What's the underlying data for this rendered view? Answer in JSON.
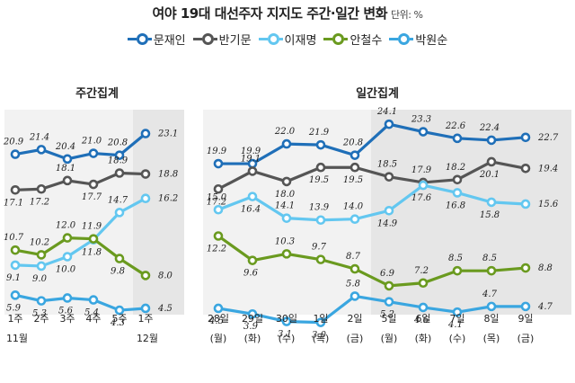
{
  "title": "여야 19대 대선주자 지지도 주간·일간 변화",
  "unit": "단위: %",
  "colors": {
    "문재인": "#1f6fb8",
    "반기문": "#555555",
    "이재명": "#63c7f0",
    "안철수": "#6a9a1f",
    "박원순": "#3aa6e0",
    "highlight": "#e6e6e6"
  },
  "chart_data": [
    {
      "type": "line",
      "title": "주간집계",
      "x": [
        "1주",
        "2주",
        "3주",
        "4주",
        "5주",
        "1주"
      ],
      "month_labels": [
        {
          "label": "11월",
          "at": 0
        },
        {
          "label": "12월",
          "at": 5
        }
      ],
      "highlight_from": 5,
      "series": [
        {
          "name": "문재인",
          "values": [
            20.9,
            21.4,
            20.4,
            21.0,
            20.8,
            23.1
          ]
        },
        {
          "name": "반기문",
          "values": [
            17.1,
            17.2,
            18.1,
            17.7,
            18.9,
            18.8
          ]
        },
        {
          "name": "이재명",
          "values": [
            9.1,
            9.0,
            10.0,
            11.8,
            14.7,
            16.2
          ]
        },
        {
          "name": "안철수",
          "values": [
            10.7,
            10.2,
            12.0,
            11.9,
            9.8,
            8.0
          ]
        },
        {
          "name": "박원순",
          "values": [
            5.9,
            5.3,
            5.6,
            5.4,
            4.3,
            4.5
          ]
        }
      ]
    },
    {
      "type": "line",
      "title": "일간집계",
      "x": [
        "28일",
        "29일",
        "30일",
        "1일",
        "2일",
        "5일",
        "6일",
        "7일",
        "8일",
        "9일"
      ],
      "weekdays": [
        "(월)",
        "(화)",
        "(수)",
        "(목)",
        "(금)",
        "(월)",
        "(화)",
        "(수)",
        "(목)",
        "(금)"
      ],
      "highlight_from": 5,
      "series": [
        {
          "name": "문재인",
          "values": [
            19.9,
            19.9,
            22.0,
            21.9,
            20.8,
            24.1,
            23.3,
            22.6,
            22.4,
            22.7
          ]
        },
        {
          "name": "반기문",
          "values": [
            17.2,
            19.1,
            18.0,
            19.5,
            19.5,
            18.5,
            17.9,
            18.2,
            20.1,
            19.4
          ]
        },
        {
          "name": "이재명",
          "values": [
            15.0,
            16.4,
            14.1,
            13.9,
            14.0,
            14.9,
            17.6,
            16.8,
            15.8,
            15.6
          ]
        },
        {
          "name": "안철수",
          "values": [
            12.2,
            9.6,
            10.3,
            9.7,
            8.7,
            6.9,
            7.2,
            8.5,
            8.5,
            8.8
          ]
        },
        {
          "name": "박원순",
          "values": [
            4.5,
            3.9,
            3.1,
            3.0,
            5.8,
            5.2,
            4.6,
            4.1,
            4.7,
            4.7
          ]
        }
      ]
    }
  ]
}
